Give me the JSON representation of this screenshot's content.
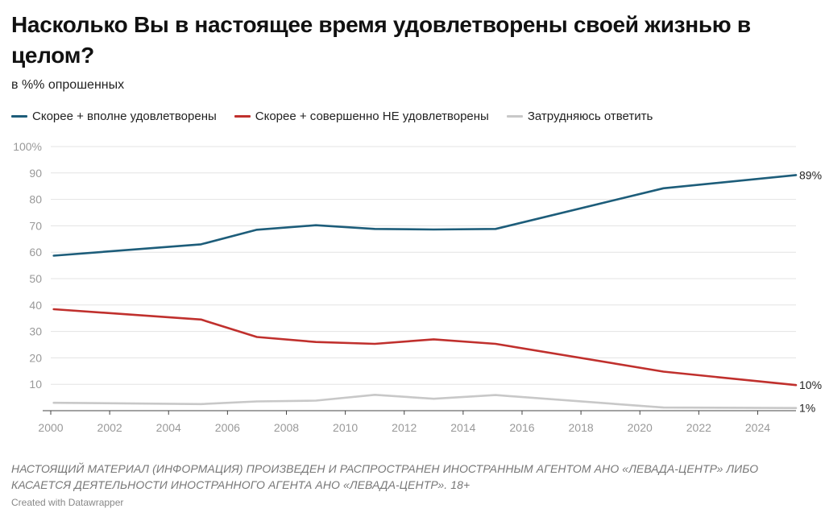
{
  "title": "Насколько Вы в настоящее время удовлетворены своей жизнью в целом?",
  "subtitle": "в %% опрошенных",
  "notes": "НАСТОЯЩИЙ МАТЕРИАЛ (ИНФОРМАЦИЯ) ПРОИЗВЕДЕН И РАСПРОСТРАНЕН ИНОСТРАННЫМ АГЕНТОМ АНО «ЛЕВАДА-ЦЕНТР» ЛИБО КАСАЕТСЯ ДЕЯТЕЛЬНОСТИ ИНОСТРАННОГО АГЕНТА АНО «ЛЕВАДА-ЦЕНТР». 18+",
  "credit": "Created with Datawrapper",
  "chart_data": {
    "type": "line",
    "title": "Насколько Вы в настоящее время удовлетворены своей жизнью в целом?",
    "subtitle": "в %% опрошенных",
    "xlabel": "",
    "ylabel": "",
    "xlim": [
      2000,
      2025.3
    ],
    "ylim": [
      0,
      100
    ],
    "grid": true,
    "legend_position": "top-left",
    "x_ticks": [
      2000,
      2002,
      2004,
      2006,
      2008,
      2010,
      2012,
      2014,
      2016,
      2018,
      2020,
      2022,
      2024
    ],
    "y_ticks": [
      {
        "value": 10,
        "label": "10"
      },
      {
        "value": 20,
        "label": "20"
      },
      {
        "value": 30,
        "label": "30"
      },
      {
        "value": 40,
        "label": "40"
      },
      {
        "value": 50,
        "label": "50"
      },
      {
        "value": 60,
        "label": "60"
      },
      {
        "value": 70,
        "label": "70"
      },
      {
        "value": 80,
        "label": "80"
      },
      {
        "value": 90,
        "label": "90"
      },
      {
        "value": 100,
        "label": "100%"
      }
    ],
    "series": [
      {
        "name": "Скорее + вполне удовлетворены",
        "color": "#1d5d7a",
        "end_label": "89%",
        "points": [
          [
            2000.1,
            58.7
          ],
          [
            2005.1,
            63.0
          ],
          [
            2007.0,
            68.5
          ],
          [
            2009.0,
            70.2
          ],
          [
            2011.0,
            68.8
          ],
          [
            2013.0,
            68.6
          ],
          [
            2015.1,
            68.8
          ],
          [
            2020.8,
            84.2
          ],
          [
            2025.3,
            89.2
          ]
        ]
      },
      {
        "name": "Скорее + совершенно НЕ удовлетворены",
        "color": "#c0302d",
        "end_label": "10%",
        "points": [
          [
            2000.1,
            38.4
          ],
          [
            2005.1,
            34.5
          ],
          [
            2007.0,
            27.9
          ],
          [
            2009.0,
            26.0
          ],
          [
            2011.0,
            25.3
          ],
          [
            2013.0,
            27.0
          ],
          [
            2015.1,
            25.3
          ],
          [
            2020.8,
            14.8
          ],
          [
            2025.3,
            9.7
          ]
        ]
      },
      {
        "name": "Затрудняюсь ответить",
        "color": "#c8c8c8",
        "end_label": "1%",
        "points": [
          [
            2000.1,
            3.0
          ],
          [
            2005.1,
            2.5
          ],
          [
            2007.0,
            3.5
          ],
          [
            2009.0,
            3.8
          ],
          [
            2011.0,
            6.0
          ],
          [
            2013.0,
            4.5
          ],
          [
            2015.1,
            5.9
          ],
          [
            2020.8,
            1.2
          ],
          [
            2025.3,
            1.0
          ]
        ]
      }
    ]
  }
}
